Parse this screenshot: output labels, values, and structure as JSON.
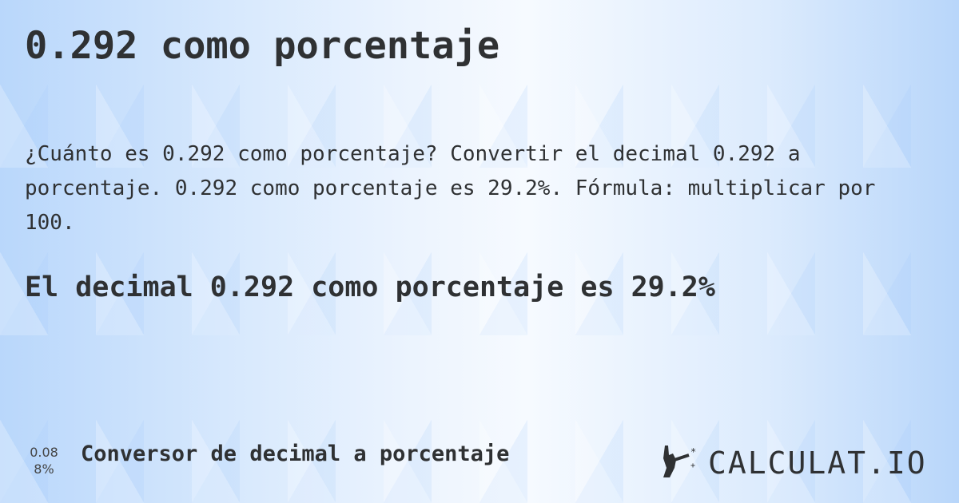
{
  "title": "0.292 como porcentaje",
  "description": "¿Cuánto es 0.292 como porcentaje? Convertir el decimal 0.292 a porcentaje. 0.292 como porcentaje es 29.2%. Fórmula: multiplicar por 100.",
  "answer": "El decimal 0.292 como porcentaje es 29.2%",
  "footer": {
    "badge_top": "0.08",
    "badge_bottom": "8%",
    "link_label": "Conversor de decimal a porcentaje",
    "logo_text": "CALCULAT.IO",
    "logo_icon": "hand-wand-icon"
  }
}
